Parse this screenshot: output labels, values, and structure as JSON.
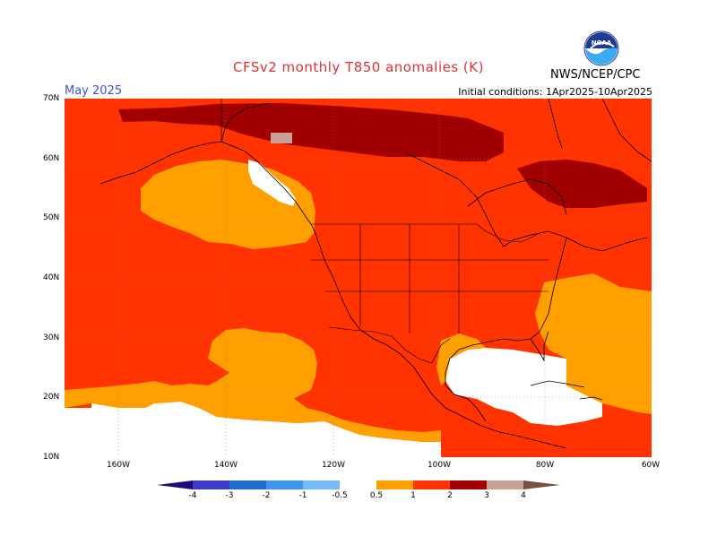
{
  "header": {
    "title": "CFSv2 monthly T850 anomalies (K)",
    "month": "May 2025",
    "initial_conditions": "Initial conditions: 1Apr2025-10Apr2025",
    "agency": "NWS/NCEP/CPC",
    "logo_text": "NOAA"
  },
  "axes": {
    "lat_labels": [
      "70N",
      "60N",
      "50N",
      "40N",
      "30N",
      "20N",
      "10N"
    ],
    "lon_labels": [
      "160W",
      "140W",
      "120W",
      "100W",
      "80W",
      "60W"
    ]
  },
  "colorbar": {
    "labels": [
      "-4",
      "-3",
      "-2",
      "-1",
      "-0.5",
      "0.5",
      "1",
      "2",
      "3",
      "4"
    ],
    "colors": {
      "lt_-4": "#1e0a78",
      "-4_-3": "#3c3cc8",
      "-3_-2": "#1e6ed2",
      "-2_-1": "#3c96f0",
      "-1_-0.5": "#78b9fa",
      "-0.5_0.5": "#ffffff",
      "0.5_1": "#ffa000",
      "1_2": "#ff3200",
      "2_3": "#a00000",
      "3_4": "#c8a096",
      "gt_4": "#785040"
    }
  },
  "colors": {
    "ocean_1_2": "#ff3200",
    "ocean_0_5_1": "#ffa000",
    "near_zero": "#ffffff",
    "warm_2_3": "#a00000",
    "warm_3_4": "#c8a096"
  }
}
